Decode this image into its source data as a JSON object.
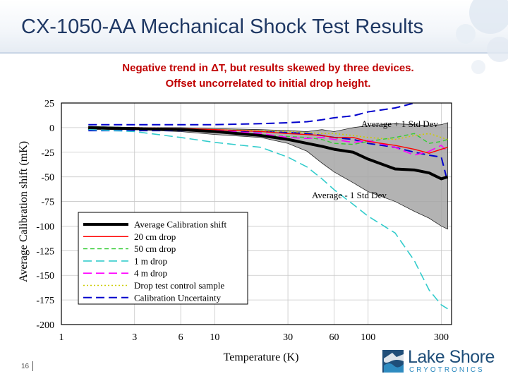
{
  "slide": {
    "title": "CX-1050-AA Mechanical Shock Test Results",
    "subtitle_line1": "Negative trend in ΔT, but results skewed by three devices.",
    "subtitle_line2": "Offset uncorrelated to initial drop height.",
    "page_number": "16",
    "logo": {
      "name": "Lake Shore",
      "tagline": "CRYOTRONICS",
      "colors": {
        "dark": "#1f4e79",
        "light": "#2e8bc0"
      }
    }
  },
  "chart_data": {
    "type": "line",
    "xlabel": "Temperature (K)",
    "ylabel": "Average Calibration shift (mK)",
    "x_scale": "log",
    "xlim": [
      1,
      350
    ],
    "ylim": [
      -200,
      25
    ],
    "x_ticks": [
      1,
      3,
      6,
      10,
      30,
      60,
      100,
      300
    ],
    "y_ticks": [
      25,
      0,
      -25,
      -50,
      -75,
      -100,
      -125,
      -150,
      -175,
      -200
    ],
    "grid": true,
    "legend_position": "lower-left",
    "annotations": [
      "Average + 1 Std Dev",
      "Average - 1 Std Dev"
    ],
    "x": [
      1.5,
      3,
      6,
      10,
      20,
      30,
      40,
      50,
      60,
      80,
      100,
      150,
      200,
      250,
      300,
      330
    ],
    "band": {
      "upper": [
        1,
        0,
        0,
        -1,
        -2,
        -3,
        -4,
        -2,
        -4,
        0,
        2,
        4,
        3,
        2,
        3,
        5
      ],
      "lower": [
        -2,
        -2,
        -4,
        -7,
        -10,
        -16,
        -24,
        -36,
        -45,
        -56,
        -65,
        -75,
        -85,
        -92,
        -100,
        -103
      ],
      "color": "#a6a6a6"
    },
    "series": [
      {
        "name": "Average Calibration shift",
        "color": "#000000",
        "dash": "solid",
        "width": 4,
        "values": [
          0,
          -1,
          -2,
          -4,
          -8,
          -12,
          -16,
          -19,
          -22,
          -25,
          -32,
          -42,
          -43,
          -46,
          -52,
          -50
        ]
      },
      {
        "name": "20 cm drop",
        "color": "#ff0000",
        "dash": "solid",
        "width": 1.4,
        "values": [
          0,
          0,
          -1,
          -2,
          -4,
          -6,
          -7,
          -8,
          -10,
          -10,
          -14,
          -18,
          -22,
          -26,
          -22,
          -20
        ]
      },
      {
        "name": "50 cm drop",
        "color": "#33cc33",
        "dash": "dashed",
        "width": 1.4,
        "values": [
          1,
          0,
          -2,
          -4,
          -7,
          -9,
          -10,
          -12,
          -16,
          -17,
          -14,
          -10,
          -6,
          -16,
          -14,
          -12
        ]
      },
      {
        "name": "1 m drop",
        "color": "#33cccc",
        "dash": "longdash",
        "width": 1.6,
        "values": [
          -2,
          -4,
          -10,
          -15,
          -20,
          -30,
          -40,
          -52,
          -63,
          -78,
          -90,
          -107,
          -135,
          -165,
          -180,
          -184
        ]
      },
      {
        "name": "4 m drop",
        "color": "#ff00ff",
        "dash": "longdash",
        "width": 1.6,
        "values": [
          0,
          -1,
          -2,
          -3,
          -6,
          -10,
          -11,
          -10,
          -12,
          -15,
          -13,
          -20,
          -28,
          -24,
          -18,
          -25
        ]
      },
      {
        "name": "Drop test control sample",
        "color": "#cccc00",
        "dash": "dotted",
        "width": 1.6,
        "values": [
          0,
          0,
          -1,
          -2,
          -3,
          -4,
          -5,
          -6,
          -6,
          -8,
          -10,
          -12,
          -8,
          -6,
          -10,
          -12
        ]
      },
      {
        "name": "Calibration Uncertainty",
        "color": "#0000cc",
        "dash": "longdash",
        "width": 2,
        "values": [
          3,
          3,
          3,
          3,
          4,
          5,
          6,
          8,
          10,
          12,
          16,
          20,
          25,
          28,
          30,
          32
        ]
      },
      {
        "name": "",
        "color": "#0000cc",
        "dash": "longdash",
        "width": 2,
        "values": [
          -3,
          -3,
          -3,
          -3,
          -4,
          -5,
          -6,
          -8,
          -10,
          -12,
          -16,
          -20,
          -25,
          -28,
          -30,
          -55
        ]
      }
    ]
  }
}
